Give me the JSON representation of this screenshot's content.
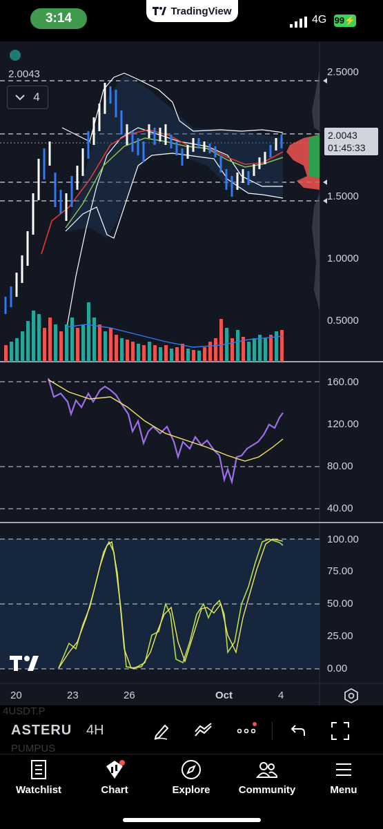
{
  "status_bar": {
    "time": "3:14",
    "app_pill": "TradingView",
    "network": "4G",
    "battery": "99"
  },
  "chart": {
    "legend_price": "2.0043",
    "indicator_count": "4",
    "price_axis": [
      "2.5000",
      "1.5000",
      "1.0000",
      "0.5000"
    ],
    "current_price": "2.0043",
    "countdown": "01:45:33",
    "rsi_axis": [
      "160.00",
      "120.00",
      "80.00",
      "40.00"
    ],
    "stoch_axis": [
      "100.00",
      "75.00",
      "50.00",
      "25.00",
      "0.00"
    ],
    "x_axis": [
      "20",
      "23",
      "26",
      "Oct",
      "4"
    ],
    "colors": {
      "up": "#3179f5",
      "down": "#ffffff",
      "vol_up": "#26a69a",
      "vol_down": "#ef5350",
      "rsi": "#9c6ee8",
      "rsi_ma": "#f5e663"
    }
  },
  "toolbar": {
    "symbol": "ASTERU",
    "symbol_ghost_top": "4USDT.P",
    "symbol_ghost_bottom": "PUMPUS",
    "interval": "4H",
    "icons": [
      "pen-icon",
      "line-tool-icon",
      "more-icon",
      "undo-icon",
      "fullscreen-icon"
    ]
  },
  "tabs": [
    {
      "label": "Watchlist",
      "icon": "watchlist-icon"
    },
    {
      "label": "Chart",
      "icon": "chart-icon"
    },
    {
      "label": "Explore",
      "icon": "compass-icon"
    },
    {
      "label": "Community",
      "icon": "community-icon"
    },
    {
      "label": "Menu",
      "icon": "menu-icon"
    }
  ]
}
